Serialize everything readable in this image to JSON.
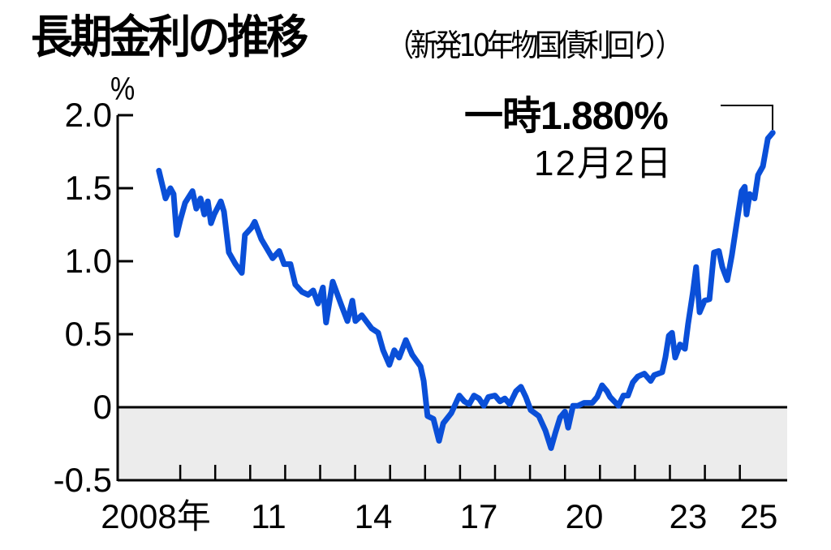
{
  "header": {
    "title": "長期金利の推移",
    "subtitle": "（新発10年物国債利回り）"
  },
  "axis": {
    "unit": "%",
    "y_labels": [
      "2.0",
      "1.5",
      "1.0",
      "0.5",
      "0",
      "-0.5"
    ],
    "x_labels": [
      "2008年",
      "11",
      "14",
      "17",
      "20",
      "23",
      "25"
    ]
  },
  "annotation": {
    "main": "一時1.880%",
    "date": "12月2日"
  },
  "colors": {
    "line": "#0a4fd8",
    "negative_area": "#ececec",
    "axis": "#000000"
  },
  "chart_data": {
    "type": "line",
    "title": "長期金利の推移",
    "subtitle": "（新発10年物国債利回り）",
    "xlabel": "",
    "ylabel": "%",
    "ylim": [
      -0.5,
      2.0
    ],
    "xlim": [
      2007.2,
      2026.35
    ],
    "yticks": [
      2.0,
      1.5,
      1.0,
      0.5,
      0,
      -0.5
    ],
    "ytick_labels": [
      "2.0",
      "1.5",
      "1.0",
      "0.5",
      "0",
      "-0.5"
    ],
    "xtick_labels": [
      {
        "label": "2008年",
        "year": 2008
      },
      {
        "label": "11",
        "year": 2011
      },
      {
        "label": "14",
        "year": 2014
      },
      {
        "label": "17",
        "year": 2017
      },
      {
        "label": "20",
        "year": 2020
      },
      {
        "label": "23",
        "year": 2023
      },
      {
        "label": "25",
        "year": 2025
      }
    ],
    "grid": false,
    "legend": null,
    "shaded_region": {
      "from": -0.5,
      "to": 0,
      "color": "#ececec"
    },
    "annotations": [
      {
        "text": "一時1.880%",
        "subtext": "12月2日",
        "x": 2025.92,
        "y": 1.88
      }
    ],
    "series": [
      {
        "name": "新発10年物国債利回り",
        "x": [
          2008.39,
          2008.58,
          2008.72,
          2008.81,
          2008.9,
          2009.0,
          2009.14,
          2009.35,
          2009.46,
          2009.58,
          2009.69,
          2009.79,
          2009.88,
          2009.97,
          2010.16,
          2010.25,
          2010.39,
          2010.58,
          2010.76,
          2010.85,
          2011.04,
          2011.13,
          2011.32,
          2011.64,
          2011.83,
          2011.97,
          2012.15,
          2012.29,
          2012.48,
          2012.66,
          2012.8,
          2012.94,
          2013.08,
          2013.17,
          2013.36,
          2013.59,
          2013.78,
          2013.92,
          2014.01,
          2014.19,
          2014.47,
          2014.66,
          2014.8,
          2014.98,
          2015.12,
          2015.26,
          2015.45,
          2015.63,
          2015.87,
          2015.96,
          2016.07,
          2016.24,
          2016.4,
          2016.52,
          2016.75,
          2016.98,
          2017.12,
          2017.26,
          2017.4,
          2017.54,
          2017.68,
          2017.81,
          2018.0,
          2018.14,
          2018.28,
          2018.42,
          2018.6,
          2018.74,
          2018.88,
          2019.02,
          2019.25,
          2019.44,
          2019.6,
          2019.72,
          2019.86,
          2020.0,
          2020.09,
          2020.23,
          2020.37,
          2020.55,
          2020.78,
          2020.92,
          2021.06,
          2021.2,
          2021.29,
          2021.53,
          2021.67,
          2021.8,
          2021.94,
          2022.08,
          2022.27,
          2022.45,
          2022.55,
          2022.78,
          2022.87,
          2022.97,
          2023.06,
          2023.15,
          2023.29,
          2023.43,
          2023.52,
          2023.66,
          2023.75,
          2023.85,
          2023.99,
          2024.13,
          2024.26,
          2024.4,
          2024.5,
          2024.64,
          2024.77,
          2024.91,
          2025.05,
          2025.14,
          2025.19,
          2025.28,
          2025.42,
          2025.52,
          2025.66,
          2025.8,
          2025.94
        ],
        "values": [
          1.62,
          1.43,
          1.5,
          1.46,
          1.18,
          1.28,
          1.4,
          1.48,
          1.36,
          1.43,
          1.32,
          1.41,
          1.26,
          1.32,
          1.41,
          1.34,
          1.06,
          0.98,
          0.92,
          1.18,
          1.23,
          1.27,
          1.15,
          1.02,
          1.07,
          0.98,
          0.98,
          0.84,
          0.79,
          0.77,
          0.8,
          0.71,
          0.82,
          0.58,
          0.86,
          0.71,
          0.59,
          0.73,
          0.59,
          0.63,
          0.54,
          0.51,
          0.39,
          0.29,
          0.39,
          0.34,
          0.46,
          0.36,
          0.28,
          0.18,
          -0.06,
          -0.08,
          -0.23,
          -0.11,
          -0.04,
          0.08,
          0.04,
          0.02,
          0.08,
          0.06,
          0.01,
          0.07,
          0.08,
          0.04,
          0.06,
          0.02,
          0.11,
          0.14,
          0.07,
          -0.02,
          -0.06,
          -0.16,
          -0.28,
          -0.18,
          -0.07,
          -0.03,
          -0.14,
          0.01,
          0.01,
          0.03,
          0.03,
          0.07,
          0.15,
          0.11,
          0.07,
          0.01,
          0.08,
          0.08,
          0.17,
          0.21,
          0.23,
          0.18,
          0.22,
          0.24,
          0.34,
          0.49,
          0.51,
          0.34,
          0.43,
          0.4,
          0.57,
          0.79,
          0.96,
          0.65,
          0.73,
          0.74,
          1.06,
          1.07,
          0.96,
          0.87,
          1.04,
          1.26,
          1.48,
          1.51,
          1.32,
          1.46,
          1.43,
          1.59,
          1.65,
          1.84,
          1.88
        ]
      }
    ]
  }
}
